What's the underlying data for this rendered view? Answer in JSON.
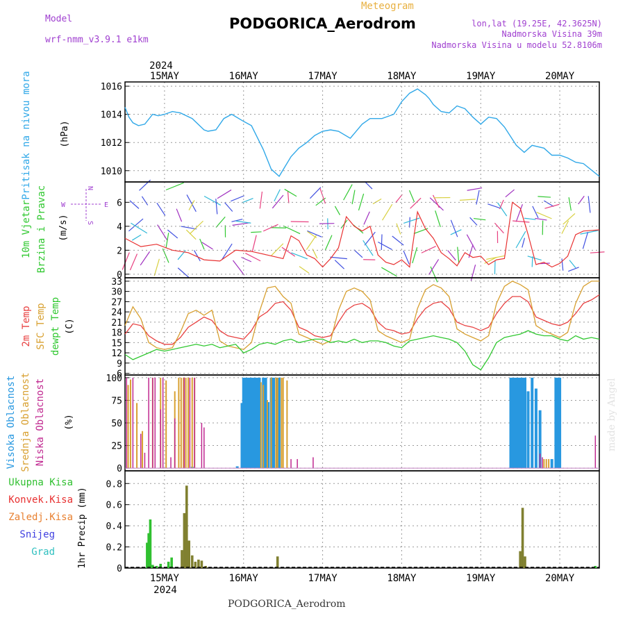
{
  "header": {
    "model_label": "Model",
    "model_name": "wrf-nmm_v3.9.1  e1km",
    "meteogram_label": "Meteogram",
    "station": "PODGORICA_Aerodrom",
    "lonlat": "lon,lat (19.25E, 42.3625N)",
    "altitude": "Nadmorska Visina 39m",
    "model_altitude": "Nadmorska Visina u modelu 52.8106m"
  },
  "footer": {
    "station": "PODGORICA_Aerodrom"
  },
  "watermark": "made by Angel",
  "colors": {
    "pressure": "#30a8e8",
    "wind_speed_red": "#e83030",
    "wind_speed_black": "#000000",
    "temp_2m": "#e84040",
    "temp_sfc": "#d8a030",
    "dewpoint": "#30c830",
    "cloud_high": "#2898e0",
    "cloud_mid": "#d8a030",
    "cloud_low": "#c02890",
    "precip_total": "#30c030",
    "precip_conv": "#e83030",
    "precip_frozen": "#e88030",
    "snow": "#4040e0",
    "hail": "#30c0c0",
    "precip_overlap": "#808030"
  },
  "time_axis": {
    "year": "2024",
    "day_labels": [
      "15MAY",
      "16MAY",
      "17MAY",
      "18MAY",
      "19MAY",
      "20MAY"
    ]
  },
  "chart_data": [
    {
      "type": "line",
      "panel": "pressure",
      "ylabel_colored": "Pritisak na nivou mora",
      "ylabel_unit": "(hPa)",
      "ylim": [
        1009.2,
        1016.3
      ],
      "yticks": [
        1010,
        1012,
        1014,
        1016
      ],
      "xlim": [
        -0.5,
        5.5
      ],
      "grid": true,
      "series": [
        {
          "x": [
            -0.5,
            -0.45,
            -0.4,
            -0.33,
            -0.25,
            -0.15,
            -0.08,
            0,
            0.1,
            0.2,
            0.35,
            0.5,
            0.55,
            0.65,
            0.75,
            0.85,
            1.0,
            1.1,
            1.25,
            1.35,
            1.45,
            1.6,
            1.7,
            1.8,
            1.9,
            2.0,
            2.1,
            2.2,
            2.35,
            2.5,
            2.6,
            2.75,
            2.9,
            3.0,
            3.1,
            3.2,
            3.3,
            3.35,
            3.4,
            3.5,
            3.6,
            3.7,
            3.8,
            3.9,
            4.0,
            4.1,
            4.2,
            4.3,
            4.45,
            4.55,
            4.65,
            4.8,
            4.9,
            5.0,
            5.1,
            5.2,
            5.3,
            5.5
          ],
          "y": [
            1014.5,
            1013.8,
            1013.4,
            1013.2,
            1013.3,
            1014.0,
            1013.9,
            1014.0,
            1014.2,
            1014.1,
            1013.7,
            1012.9,
            1012.8,
            1012.9,
            1013.7,
            1014.0,
            1013.5,
            1013.2,
            1011.5,
            1010.1,
            1009.6,
            1011.0,
            1011.6,
            1012.0,
            1012.5,
            1012.8,
            1012.9,
            1012.8,
            1012.3,
            1013.3,
            1013.7,
            1013.7,
            1014.0,
            1014.9,
            1015.5,
            1015.8,
            1015.4,
            1015.1,
            1014.7,
            1014.2,
            1014.1,
            1014.6,
            1014.4,
            1013.8,
            1013.3,
            1013.8,
            1013.7,
            1013.1,
            1011.8,
            1011.3,
            1011.8,
            1011.6,
            1011.1,
            1011.1,
            1010.9,
            1010.6,
            1010.5,
            1009.6
          ]
        }
      ]
    },
    {
      "type": "line",
      "panel": "wind",
      "ylabel_colored_1": "10m Vjetar",
      "ylabel_colored_2": "Brzina i Pravac",
      "ylabel_unit": "(m/s)",
      "compass": {
        "west": "W",
        "east": "E",
        "north": "N",
        "south": "S"
      },
      "ylim": [
        -0.3,
        7.7
      ],
      "yticks": [
        0,
        2,
        4,
        6
      ],
      "xlim": [
        -0.5,
        5.5
      ],
      "grid": true,
      "series": [
        {
          "x": [
            -0.5,
            -0.3,
            -0.1,
            0.1,
            0.3,
            0.5,
            0.7,
            0.9,
            1.1,
            1.3,
            1.5,
            1.6,
            1.7,
            1.8,
            1.9,
            2.0,
            2.1,
            2.2,
            2.3,
            2.4,
            2.5,
            2.6,
            2.7,
            2.8,
            2.9,
            3.0,
            3.1,
            3.2,
            3.3,
            3.4,
            3.5,
            3.6,
            3.7,
            3.8,
            3.9,
            4.0,
            4.1,
            4.2,
            4.3,
            4.4,
            4.5,
            4.6,
            4.7,
            4.8,
            4.9,
            5.0,
            5.1,
            5.2,
            5.3,
            5.5
          ],
          "y": [
            3.0,
            2.3,
            2.5,
            2.0,
            1.8,
            1.2,
            1.1,
            2.0,
            1.9,
            1.6,
            1.3,
            3.2,
            2.8,
            1.6,
            1.3,
            0.6,
            1.3,
            2.2,
            4.8,
            4.0,
            3.6,
            4.0,
            1.6,
            1.0,
            0.8,
            1.2,
            0.6,
            5.2,
            3.8,
            3.0,
            1.8,
            1.3,
            0.7,
            1.8,
            1.4,
            1.5,
            0.8,
            1.2,
            1.3,
            6.0,
            5.5,
            3.3,
            0.8,
            1.0,
            0.6,
            0.9,
            1.5,
            3.3,
            3.6,
            3.7
          ]
        }
      ]
    },
    {
      "type": "line",
      "panel": "temperature",
      "ylabel_colored_1": "2m Temp",
      "ylabel_colored_2": "SFC Temp",
      "ylabel_colored_3": "dewpt Temp",
      "ylabel_unit": "(C)",
      "ylim": [
        5.5,
        34
      ],
      "yticks": [
        6,
        9,
        12,
        15,
        18,
        21,
        24,
        27,
        30,
        33
      ],
      "xlim": [
        -0.5,
        5.5
      ],
      "grid": true,
      "series": [
        {
          "name": "2m Temp",
          "x": [
            -0.5,
            -0.4,
            -0.3,
            -0.2,
            -0.1,
            0,
            0.1,
            0.2,
            0.3,
            0.4,
            0.5,
            0.6,
            0.7,
            0.8,
            0.9,
            1.0,
            1.1,
            1.2,
            1.3,
            1.4,
            1.5,
            1.6,
            1.7,
            1.8,
            1.9,
            2.0,
            2.1,
            2.2,
            2.3,
            2.4,
            2.5,
            2.6,
            2.7,
            2.8,
            2.9,
            3.0,
            3.1,
            3.2,
            3.3,
            3.4,
            3.5,
            3.6,
            3.7,
            3.8,
            3.9,
            4.0,
            4.1,
            4.2,
            4.3,
            4.4,
            4.5,
            4.6,
            4.7,
            4.8,
            4.9,
            5.0,
            5.1,
            5.2,
            5.3,
            5.4,
            5.5
          ],
          "y": [
            17.5,
            20.5,
            20.0,
            17.0,
            15.5,
            14.5,
            14.5,
            16.5,
            19.5,
            21.0,
            22.5,
            21.5,
            18.5,
            17.0,
            16.5,
            16.0,
            18.5,
            22.5,
            24.0,
            26.5,
            27.0,
            24.5,
            19.5,
            18.5,
            17.0,
            16.5,
            17.0,
            21.0,
            24.5,
            26.0,
            26.5,
            25.0,
            21.0,
            19.0,
            18.5,
            17.5,
            18.0,
            22.0,
            25.0,
            26.5,
            27.0,
            25.0,
            21.0,
            20.0,
            19.5,
            18.5,
            19.5,
            23.5,
            26.5,
            28.5,
            28.5,
            27.0,
            22.5,
            21.5,
            20.5,
            20.0,
            21.0,
            23.5,
            26.5,
            27.5,
            29.0
          ]
        },
        {
          "name": "SFC Temp",
          "x": [
            -0.5,
            -0.4,
            -0.3,
            -0.2,
            -0.1,
            0,
            0.1,
            0.2,
            0.3,
            0.4,
            0.5,
            0.6,
            0.7,
            0.8,
            0.9,
            1.0,
            1.1,
            1.2,
            1.3,
            1.4,
            1.5,
            1.6,
            1.7,
            1.8,
            1.9,
            2.0,
            2.1,
            2.2,
            2.3,
            2.4,
            2.5,
            2.6,
            2.7,
            2.8,
            2.9,
            3.0,
            3.1,
            3.2,
            3.3,
            3.4,
            3.5,
            3.6,
            3.7,
            3.8,
            3.9,
            4.0,
            4.1,
            4.2,
            4.3,
            4.4,
            4.5,
            4.6,
            4.7,
            4.8,
            4.9,
            5.0,
            5.1,
            5.2,
            5.3,
            5.4,
            5.5
          ],
          "y": [
            20.0,
            25.5,
            22.0,
            15.0,
            13.5,
            13.0,
            13.5,
            18.0,
            23.5,
            24.5,
            23.0,
            24.5,
            15.5,
            14.0,
            13.5,
            13.0,
            15.0,
            24.0,
            31.0,
            31.5,
            28.5,
            26.5,
            17.5,
            16.5,
            15.5,
            14.5,
            15.5,
            24.5,
            30.0,
            31.0,
            30.0,
            27.5,
            18.5,
            17.0,
            16.0,
            15.0,
            16.0,
            25.0,
            30.5,
            32.0,
            31.0,
            28.5,
            19.0,
            17.5,
            16.5,
            15.5,
            17.0,
            26.5,
            31.5,
            33.0,
            32.0,
            30.5,
            20.0,
            18.5,
            17.5,
            16.5,
            18.0,
            26.5,
            31.5,
            33.0,
            33.0
          ]
        },
        {
          "name": "dewpt Temp",
          "x": [
            -0.5,
            -0.4,
            -0.3,
            -0.2,
            -0.1,
            0,
            0.1,
            0.2,
            0.3,
            0.4,
            0.5,
            0.6,
            0.7,
            0.8,
            0.9,
            1.0,
            1.1,
            1.2,
            1.3,
            1.4,
            1.5,
            1.6,
            1.7,
            1.8,
            1.9,
            2.0,
            2.1,
            2.2,
            2.3,
            2.4,
            2.5,
            2.6,
            2.7,
            2.8,
            2.9,
            3.0,
            3.1,
            3.2,
            3.3,
            3.4,
            3.5,
            3.6,
            3.7,
            3.8,
            3.9,
            4.0,
            4.1,
            4.2,
            4.3,
            4.4,
            4.5,
            4.6,
            4.7,
            4.8,
            4.9,
            5.0,
            5.1,
            5.2,
            5.3,
            5.4,
            5.5
          ],
          "y": [
            11.5,
            10.0,
            11.0,
            12.0,
            13.0,
            12.5,
            13.0,
            13.5,
            14.0,
            14.5,
            14.0,
            14.5,
            13.5,
            14.0,
            14.5,
            12.0,
            13.0,
            14.5,
            15.0,
            14.5,
            15.5,
            16.0,
            15.0,
            15.5,
            16.0,
            16.0,
            15.0,
            15.5,
            15.0,
            16.0,
            15.0,
            15.5,
            15.5,
            15.0,
            14.0,
            13.5,
            15.5,
            16.0,
            16.5,
            17.0,
            16.5,
            16.0,
            15.0,
            12.5,
            8.5,
            7.0,
            10.5,
            15.0,
            16.5,
            17.0,
            17.5,
            18.5,
            17.5,
            17.0,
            17.0,
            16.0,
            15.5,
            17.0,
            16.0,
            16.5,
            16.0
          ]
        }
      ]
    },
    {
      "type": "bar",
      "panel": "clouds",
      "ylabel_colored_1": "Visoka Oblacnost",
      "ylabel_colored_2": "Srednja Oblacnost",
      "ylabel_colored_3": "Niska Oblacnost",
      "ylabel_unit": "(%)",
      "ylim": [
        -3,
        103
      ],
      "yticks": [
        0,
        25,
        50,
        75,
        100
      ],
      "xlim": [
        -0.5,
        5.5
      ],
      "grid": true,
      "series": [
        {
          "name": "Visoka Oblacnost",
          "x": [
            0.07,
            0.35,
            0.92,
            0.98,
            1.0,
            1.02,
            1.05,
            1.08,
            1.11,
            1.14,
            1.17,
            1.2,
            1.25,
            1.28,
            1.31,
            1.35,
            1.38,
            1.42,
            1.45,
            4.38,
            4.41,
            4.44,
            4.47,
            4.5,
            4.53,
            4.56,
            4.6,
            4.65,
            4.7,
            4.75,
            4.9,
            4.95,
            4.97,
            5.0
          ],
          "y": [
            0.5,
            1.5,
            2,
            72,
            100,
            100,
            100,
            100,
            100,
            100,
            100,
            100,
            100,
            100,
            73,
            100,
            100,
            100,
            100,
            100,
            100,
            100,
            100,
            100,
            100,
            100,
            85,
            100,
            88,
            64,
            10,
            100,
            100,
            100
          ]
        },
        {
          "name": "Srednja Oblacnost",
          "x": [
            -0.46,
            -0.43,
            -0.35,
            -0.28,
            -0.15,
            -0.05,
            0.02,
            0.13,
            0.18,
            0.21,
            0.24,
            0.27,
            0.3,
            0.35,
            0.38,
            1.22,
            1.25,
            1.3,
            1.35,
            1.41,
            1.43,
            1.48,
            1.5,
            1.55,
            4.8,
            4.83,
            4.86
          ],
          "y": [
            92,
            98,
            72,
            41,
            100,
            100,
            97,
            85,
            100,
            100,
            100,
            100,
            100,
            100,
            100,
            95,
            92,
            75,
            100,
            100,
            100,
            100,
            100,
            97,
            10,
            10,
            10
          ]
        },
        {
          "name": "Niska Oblacnost",
          "x": [
            -0.48,
            -0.4,
            -0.3,
            -0.25,
            -0.2,
            -0.15,
            -0.12,
            -0.05,
            -0.02,
            0.08,
            0.13,
            0.25,
            0.32,
            0.38,
            0.47,
            0.5,
            1.6,
            1.68,
            1.88,
            4.75,
            4.78,
            5.45
          ],
          "y": [
            100,
            100,
            38,
            17,
            100,
            100,
            100,
            65,
            100,
            12,
            55,
            100,
            100,
            100,
            50,
            45,
            10,
            10,
            12,
            16,
            12,
            36
          ]
        }
      ]
    },
    {
      "type": "bar",
      "panel": "precipitation",
      "legend": [
        "Ukupna Kisa",
        "Konvek.Kisa",
        "Zaledj.Kisa",
        "Snijeg",
        "Grad"
      ],
      "ylabel": "1hr Precip (mm)",
      "ylim": [
        0,
        0.92
      ],
      "yticks": [
        0,
        0.2,
        0.4,
        0.6,
        0.8
      ],
      "xlim": [
        -0.5,
        5.5
      ],
      "grid": true,
      "series": [
        {
          "name": "Ukupna Kisa",
          "x": [
            -0.22,
            -0.2,
            -0.18,
            -0.15,
            -0.1,
            -0.05,
            0.05,
            0.09,
            0.22,
            0.25,
            0.28,
            0.31,
            0.35,
            0.39,
            0.43,
            0.47,
            0.52,
            1.43,
            4.5,
            4.53,
            4.56,
            5.45
          ],
          "y": [
            0.24,
            0.33,
            0.46,
            0.03,
            0.02,
            0.04,
            0.06,
            0.1,
            0.17,
            0.52,
            0.78,
            0.26,
            0.12,
            0.06,
            0.08,
            0.07,
            0.02,
            0.11,
            0.16,
            0.57,
            0.11,
            0.02
          ]
        }
      ]
    }
  ]
}
